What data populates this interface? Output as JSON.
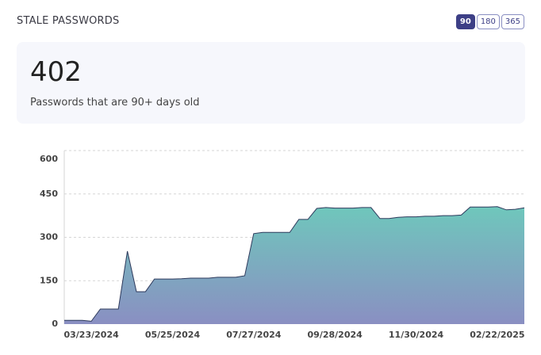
{
  "header": {
    "title": "STALE PASSWORDS",
    "filters": [
      "90",
      "180",
      "365"
    ],
    "active_filter": 0
  },
  "stat": {
    "value": 402,
    "caption": "Passwords that are 90+ days old"
  },
  "chart_data": {
    "type": "area",
    "categories": [
      null,
      null,
      null,
      "03/23/2024",
      null,
      null,
      null,
      null,
      null,
      null,
      null,
      null,
      "05/25/2024",
      null,
      null,
      null,
      null,
      null,
      null,
      null,
      null,
      "07/27/2024",
      null,
      null,
      null,
      null,
      null,
      null,
      null,
      null,
      "09/28/2024",
      null,
      null,
      null,
      null,
      null,
      null,
      null,
      null,
      "11/30/2024",
      null,
      null,
      null,
      null,
      null,
      null,
      null,
      null,
      "02/22/2025",
      null,
      null,
      null
    ],
    "values": [
      13,
      13,
      13,
      10,
      52,
      52,
      52,
      252,
      112,
      112,
      156,
      156,
      156,
      157,
      159,
      159,
      159,
      162,
      162,
      162,
      167,
      313,
      317,
      317,
      317,
      317,
      362,
      362,
      400,
      403,
      401,
      401,
      401,
      403,
      403,
      365,
      365,
      369,
      371,
      371,
      373,
      373,
      375,
      375,
      377,
      405,
      405,
      405,
      406,
      395,
      397,
      402
    ],
    "colors": [
      "#6fc7bc",
      "#8a8fc2"
    ],
    "line_color": "#2e3a5c",
    "ylim": [
      0,
      600
    ],
    "yticks": [
      0,
      150,
      300,
      450,
      600
    ],
    "grid": true
  }
}
